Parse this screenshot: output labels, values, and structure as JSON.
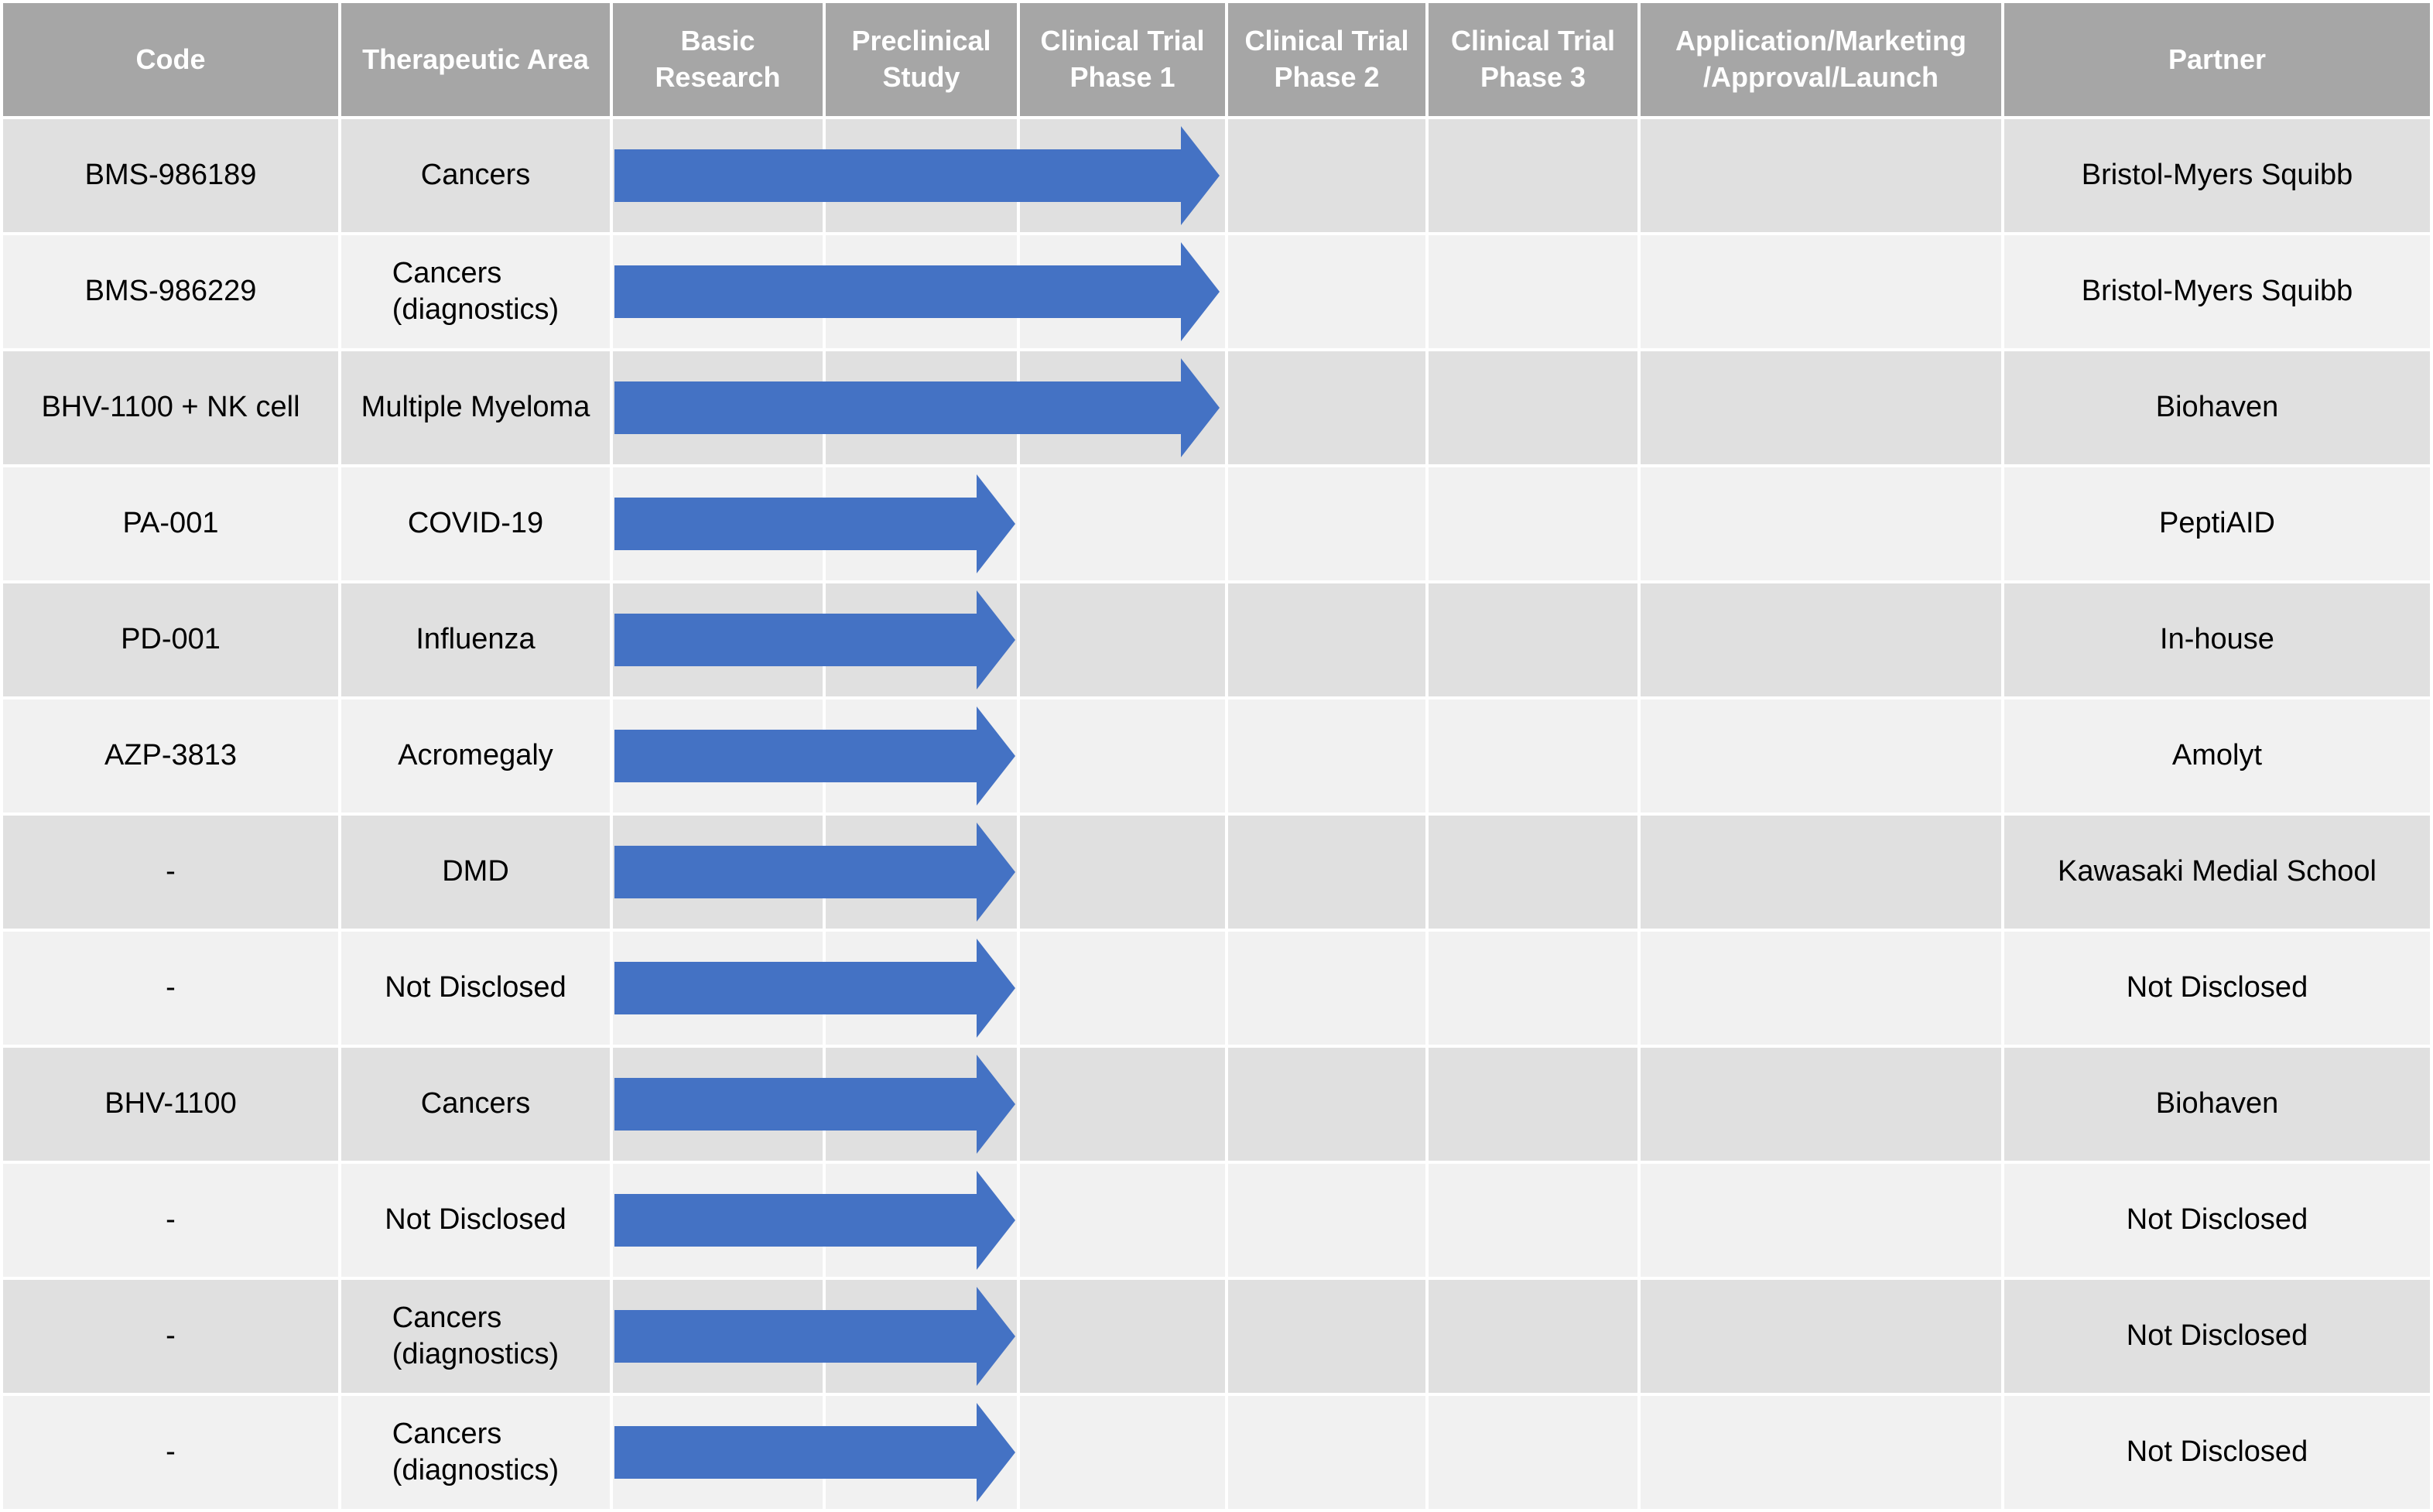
{
  "table": {
    "columns": [
      {
        "id": "code",
        "label": "Code"
      },
      {
        "id": "therapeutic-area",
        "label": "Therapeutic Area"
      },
      {
        "id": "basic-research",
        "label": "Basic\nResearch"
      },
      {
        "id": "preclinical-study",
        "label": "Preclinical\nStudy"
      },
      {
        "id": "clinical-trial-phase-1",
        "label": "Clinical Trial\nPhase 1"
      },
      {
        "id": "clinical-trial-phase-2",
        "label": "Clinical Trial\nPhase 2"
      },
      {
        "id": "clinical-trial-phase-3",
        "label": "Clinical Trial\nPhase 3"
      },
      {
        "id": "application-marketing-approval-launch",
        "label": "Application/Marketing\n/Approval/Launch"
      },
      {
        "id": "partner",
        "label": "Partner"
      }
    ],
    "rows": [
      {
        "code": "BMS-986189",
        "therapeutic_area": "Cancers",
        "stage_reached": "Clinical Trial Phase 1",
        "partner": "Bristol-Myers Squibb"
      },
      {
        "code": "BMS-986229",
        "therapeutic_area": "Cancers\n(diagnostics)",
        "stage_reached": "Clinical Trial Phase 1",
        "partner": "Bristol-Myers Squibb"
      },
      {
        "code": "BHV-1100 + NK cell",
        "therapeutic_area": "Multiple Myeloma",
        "stage_reached": "Clinical Trial Phase 1",
        "partner": "Biohaven"
      },
      {
        "code": "PA-001",
        "therapeutic_area": "COVID-19",
        "stage_reached": "Preclinical Study",
        "partner": "PeptiAID"
      },
      {
        "code": "PD-001",
        "therapeutic_area": "Influenza",
        "stage_reached": "Preclinical Study",
        "partner": "In-house"
      },
      {
        "code": "AZP-3813",
        "therapeutic_area": "Acromegaly",
        "stage_reached": "Preclinical Study",
        "partner": "Amolyt"
      },
      {
        "code": "-",
        "therapeutic_area": "DMD",
        "stage_reached": "Preclinical Study",
        "partner": "Kawasaki Medial School"
      },
      {
        "code": "-",
        "therapeutic_area": "Not Disclosed",
        "stage_reached": "Preclinical Study",
        "partner": "Not Disclosed"
      },
      {
        "code": "BHV-1100",
        "therapeutic_area": "Cancers",
        "stage_reached": "Preclinical Study",
        "partner": "Biohaven"
      },
      {
        "code": "-",
        "therapeutic_area": "Not Disclosed",
        "stage_reached": "Preclinical Study",
        "partner": "Not Disclosed"
      },
      {
        "code": "-",
        "therapeutic_area": "Cancers\n(diagnostics)",
        "stage_reached": "Preclinical Study",
        "partner": "Not Disclosed"
      },
      {
        "code": "-",
        "therapeutic_area": "Cancers\n(diagnostics)",
        "stage_reached": "Preclinical Study",
        "partner": "Not Disclosed"
      }
    ],
    "colors": {
      "header_bg": "#a6a6a6",
      "header_text": "#ffffff",
      "row_dark": "#e0e0e0",
      "row_light": "#f1f1f1",
      "arrow": "#4472c4",
      "body_text": "#000000",
      "grid_gap": "#ffffff"
    }
  }
}
